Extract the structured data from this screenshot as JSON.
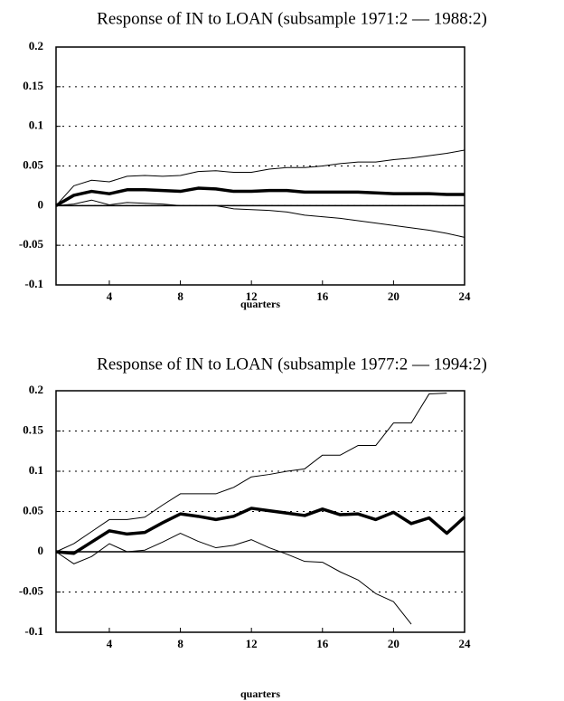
{
  "chart_data": [
    {
      "type": "line",
      "title": "Response of IN to LOAN (subsample 1971:2 — 1988:2)",
      "x_label": "quarters",
      "x": [
        1,
        2,
        3,
        4,
        5,
        6,
        7,
        8,
        9,
        10,
        11,
        12,
        13,
        14,
        15,
        16,
        17,
        18,
        19,
        20,
        21,
        22,
        23,
        24
      ],
      "xlim": [
        1,
        24
      ],
      "xticks": [
        4,
        8,
        12,
        16,
        20,
        24
      ],
      "ylim": [
        -0.1,
        0.2
      ],
      "yticks": [
        -0.1,
        -0.05,
        0,
        0.05,
        0.1,
        0.15,
        0.2
      ],
      "grid": true,
      "series": [
        {
          "color": "#000000",
          "width": 3.5,
          "values": [
            0,
            0.013,
            0.018,
            0.015,
            0.02,
            0.02,
            0.019,
            0.018,
            0.022,
            0.021,
            0.018,
            0.018,
            0.019,
            0.019,
            0.017,
            0.017,
            0.017,
            0.017,
            0.016,
            0.015,
            0.015,
            0.015,
            0.014,
            0.014
          ]
        },
        {
          "color": "#000000",
          "width": 1,
          "values": [
            0,
            0.025,
            0.032,
            0.03,
            0.037,
            0.038,
            0.037,
            0.038,
            0.043,
            0.044,
            0.042,
            0.042,
            0.046,
            0.048,
            0.048,
            0.05,
            0.053,
            0.055,
            0.055,
            0.058,
            0.06,
            0.063,
            0.066,
            0.07
          ]
        },
        {
          "color": "#000000",
          "width": 1,
          "values": [
            0,
            0.002,
            0.007,
            0.001,
            0.004,
            0.003,
            0.002,
            0,
            0,
            0,
            -0.004,
            -0.005,
            -0.006,
            -0.008,
            -0.012,
            -0.014,
            -0.016,
            -0.019,
            -0.022,
            -0.025,
            -0.028,
            -0.031,
            -0.035,
            -0.04
          ]
        }
      ]
    },
    {
      "type": "line",
      "title": "Response of IN to LOAN (subsample 1977:2 — 1994:2)",
      "x_label": "quarters",
      "x": [
        1,
        2,
        3,
        4,
        5,
        6,
        7,
        8,
        9,
        10,
        11,
        12,
        13,
        14,
        15,
        16,
        17,
        18,
        19,
        20,
        21,
        22,
        23,
        24
      ],
      "xlim": [
        1,
        24
      ],
      "xticks": [
        4,
        8,
        12,
        16,
        20,
        24
      ],
      "ylim": [
        -0.1,
        0.2
      ],
      "yticks": [
        -0.1,
        -0.05,
        0,
        0.05,
        0.1,
        0.15,
        0.2
      ],
      "grid": true,
      "series": [
        {
          "color": "#000000",
          "width": 3.5,
          "values": [
            0,
            -0.002,
            0.012,
            0.026,
            0.022,
            0.024,
            0.036,
            0.047,
            0.044,
            0.04,
            0.044,
            0.054,
            0.051,
            0.048,
            0.045,
            0.053,
            0.046,
            0.047,
            0.04,
            0.049,
            0.035,
            0.042,
            0.023,
            0.043
          ]
        },
        {
          "color": "#000000",
          "width": 1,
          "values": [
            0,
            0.01,
            0.025,
            0.04,
            0.04,
            0.043,
            0.058,
            0.072,
            0.072,
            0.072,
            0.08,
            0.093,
            0.096,
            0.1,
            0.103,
            0.12,
            0.12,
            0.132,
            0.132,
            0.16,
            0.16,
            0.196,
            0.197,
            null
          ]
        },
        {
          "color": "#000000",
          "width": 1,
          "values": [
            0,
            -0.015,
            -0.006,
            0.01,
            0,
            0.002,
            0.012,
            0.023,
            0.013,
            0.005,
            0.008,
            0.015,
            0.005,
            -0.003,
            -0.012,
            -0.013,
            -0.025,
            -0.035,
            -0.052,
            -0.062,
            -0.09,
            null,
            null,
            null
          ]
        }
      ]
    }
  ]
}
